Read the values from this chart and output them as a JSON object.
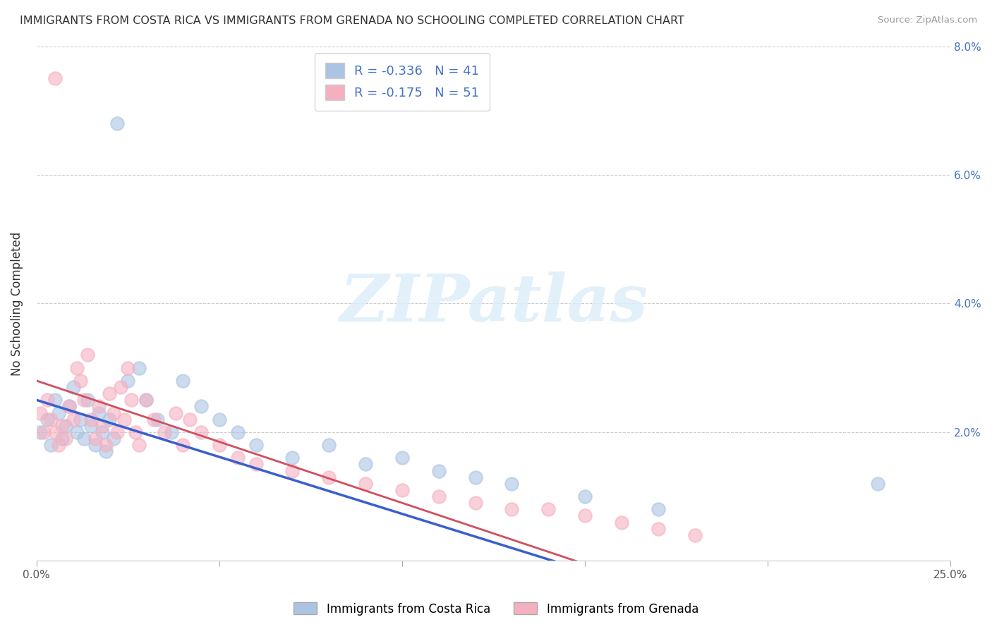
{
  "title": "IMMIGRANTS FROM COSTA RICA VS IMMIGRANTS FROM GRENADA NO SCHOOLING COMPLETED CORRELATION CHART",
  "source": "Source: ZipAtlas.com",
  "ylabel": "No Schooling Completed",
  "xlim": [
    0.0,
    0.25
  ],
  "ylim": [
    0.0,
    0.08
  ],
  "xtick_positions": [
    0.0,
    0.05,
    0.1,
    0.15,
    0.2,
    0.25
  ],
  "ytick_positions": [
    0.0,
    0.02,
    0.04,
    0.06,
    0.08
  ],
  "right_yticklabels": [
    "",
    "2.0%",
    "4.0%",
    "6.0%",
    "8.0%"
  ],
  "bottom_xticklabels_show": [
    "0.0%",
    "",
    "",
    "",
    "",
    "25.0%"
  ],
  "legend1_label": "R = -0.336   N = 41",
  "legend2_label": "R = -0.175   N = 51",
  "color_blue": "#aac4e2",
  "color_pink": "#f5b0c0",
  "trendline_blue": "#3a5fcd",
  "trendline_pink": "#d05060",
  "trendline_pink_dash": "#e08090",
  "R_blue": -0.336,
  "N_blue": 41,
  "R_pink": -0.175,
  "N_pink": 51,
  "blue_x": [
    0.001,
    0.003,
    0.004,
    0.005,
    0.006,
    0.007,
    0.008,
    0.009,
    0.01,
    0.011,
    0.012,
    0.013,
    0.014,
    0.015,
    0.016,
    0.017,
    0.018,
    0.019,
    0.02,
    0.021,
    0.022,
    0.025,
    0.028,
    0.03,
    0.033,
    0.037,
    0.04,
    0.045,
    0.05,
    0.055,
    0.06,
    0.07,
    0.08,
    0.09,
    0.1,
    0.11,
    0.12,
    0.13,
    0.15,
    0.17,
    0.23
  ],
  "blue_y": [
    0.02,
    0.022,
    0.018,
    0.025,
    0.023,
    0.019,
    0.021,
    0.024,
    0.027,
    0.02,
    0.022,
    0.019,
    0.025,
    0.021,
    0.018,
    0.023,
    0.02,
    0.017,
    0.022,
    0.019,
    0.068,
    0.028,
    0.03,
    0.025,
    0.022,
    0.02,
    0.028,
    0.024,
    0.022,
    0.02,
    0.018,
    0.016,
    0.018,
    0.015,
    0.016,
    0.014,
    0.013,
    0.012,
    0.01,
    0.008,
    0.012
  ],
  "pink_x": [
    0.001,
    0.002,
    0.003,
    0.004,
    0.005,
    0.006,
    0.007,
    0.008,
    0.009,
    0.01,
    0.011,
    0.012,
    0.013,
    0.014,
    0.015,
    0.016,
    0.017,
    0.018,
    0.019,
    0.02,
    0.021,
    0.022,
    0.023,
    0.024,
    0.025,
    0.026,
    0.027,
    0.028,
    0.03,
    0.032,
    0.035,
    0.038,
    0.04,
    0.042,
    0.045,
    0.05,
    0.055,
    0.06,
    0.07,
    0.08,
    0.09,
    0.1,
    0.11,
    0.12,
    0.13,
    0.14,
    0.15,
    0.16,
    0.17,
    0.18,
    0.005
  ],
  "pink_y": [
    0.023,
    0.02,
    0.025,
    0.022,
    0.075,
    0.018,
    0.021,
    0.019,
    0.024,
    0.022,
    0.03,
    0.028,
    0.025,
    0.032,
    0.022,
    0.019,
    0.024,
    0.021,
    0.018,
    0.026,
    0.023,
    0.02,
    0.027,
    0.022,
    0.03,
    0.025,
    0.02,
    0.018,
    0.025,
    0.022,
    0.02,
    0.023,
    0.018,
    0.022,
    0.02,
    0.018,
    0.016,
    0.015,
    0.014,
    0.013,
    0.012,
    0.011,
    0.01,
    0.009,
    0.008,
    0.008,
    0.007,
    0.006,
    0.005,
    0.004,
    0.02
  ]
}
